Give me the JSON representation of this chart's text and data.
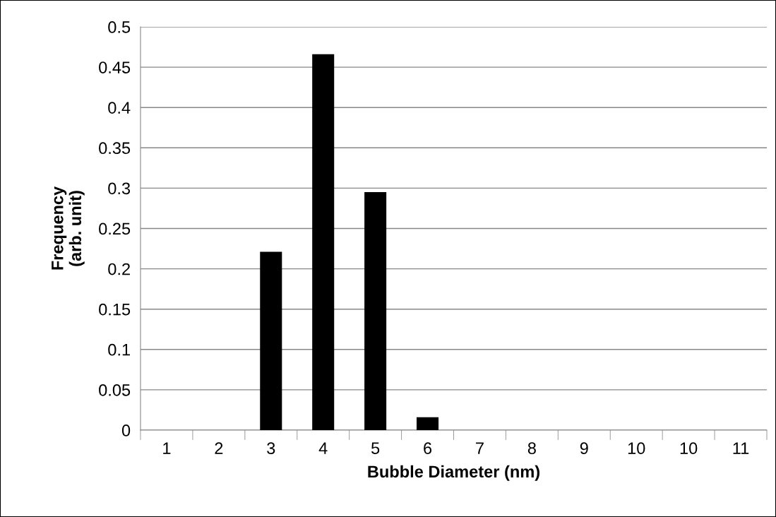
{
  "chart_data": {
    "type": "bar",
    "xlabel": "Bubble Diameter (nm)",
    "ylabel": "Frequency\n(arb. unit)",
    "categories": [
      "1",
      "2",
      "3",
      "4",
      "5",
      "6",
      "7",
      "8",
      "9",
      "10",
      "10",
      "11"
    ],
    "values": [
      0,
      0,
      0.221,
      0.466,
      0.295,
      0.016,
      0,
      0,
      0,
      0,
      0,
      0
    ],
    "color": "#000000",
    "ylim": [
      0,
      0.5
    ],
    "yticks": [
      0,
      0.05,
      0.1,
      0.15,
      0.2,
      0.25,
      0.3,
      0.35,
      0.4,
      0.45,
      0.5
    ],
    "grid": "y",
    "legend": false
  }
}
